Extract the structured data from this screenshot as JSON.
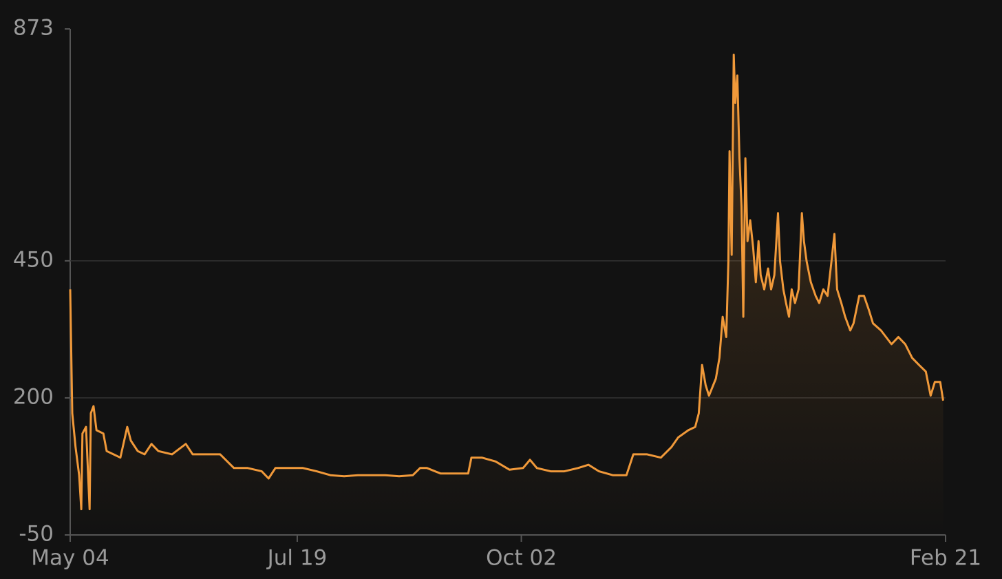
{
  "chart_data": {
    "type": "line",
    "x": [
      0,
      0.7,
      1.8,
      3,
      3.7,
      4.1,
      5.3,
      6.5,
      6.9,
      7.8,
      8.8,
      11.1,
      12.2,
      14.5,
      16.8,
      19.1,
      20.3,
      22.6,
      24.9,
      27.2,
      29.5,
      34.1,
      38.7,
      41,
      45.6,
      50.2,
      54.8,
      59.4,
      64.1,
      66.4,
      68.7,
      73.3,
      77.9,
      82.5,
      87.1,
      91.7,
      96.3,
      100.9,
      105.5,
      110.1,
      114.7,
      117.1,
      119.4,
      124,
      128.6,
      133.2,
      134.3,
      137.8,
      142.4,
      147,
      151.6,
      153.9,
      156.2,
      160.8,
      165.4,
      170,
      173.5,
      177,
      181.6,
      186.2,
      188.5,
      193.1,
      197.7,
      201.2,
      203.5,
      206.9,
      209.2,
      210.4,
      211.5,
      212.7,
      213.8,
      216.1,
      217.3,
      218.4,
      219.6,
      220.3,
      220.7,
      221.4,
      222.1,
      222.6,
      223.3,
      224,
      224.7,
      225.3,
      226,
      226.7,
      227.6,
      228.6,
      229.5,
      230.4,
      231.1,
      232.3,
      233.6,
      234.6,
      235.7,
      236.9,
      237.6,
      238.7,
      239.6,
      240.6,
      241.5,
      242.6,
      243.8,
      244.9,
      245.6,
      246.5,
      247.9,
      249.5,
      250.7,
      252.1,
      253.5,
      254.8,
      255.8,
      256.7,
      258.1,
      259.4,
      261.1,
      262.2,
      264.1,
      265.7,
      267.3,
      268.7,
      271.4,
      274.9,
      277.2,
      279.5,
      281.8,
      284.1,
      286.4,
      288,
      289.4,
      291.2,
      292.2
    ],
    "series": [
      {
        "color": "#f0993a",
        "values": [
          398,
          172,
          110,
          59,
          -3,
          135,
          147,
          -3,
          172,
          185,
          141,
          135,
          103,
          97,
          91,
          147,
          122,
          103,
          97,
          116,
          103,
          97,
          116,
          97,
          97,
          97,
          72,
          72,
          66,
          53,
          72,
          72,
          72,
          66,
          59,
          57,
          59,
          59,
          59,
          57,
          59,
          72,
          72,
          62,
          62,
          62,
          91,
          91,
          84,
          69,
          72,
          87,
          72,
          66,
          66,
          72,
          78,
          66,
          59,
          59,
          97,
          97,
          91,
          110,
          128,
          141,
          147,
          172,
          260,
          223,
          204,
          235,
          273,
          348,
          311,
          449,
          650,
          461,
          826,
          738,
          788,
          637,
          549,
          348,
          637,
          486,
          524,
          474,
          411,
          486,
          424,
          398,
          436,
          398,
          424,
          537,
          449,
          398,
          373,
          348,
          398,
          373,
          398,
          537,
          486,
          449,
          411,
          386,
          373,
          398,
          386,
          449,
          499,
          398,
          373,
          348,
          323,
          336,
          386,
          386,
          361,
          336,
          323,
          298,
          311,
          298,
          273,
          260,
          248,
          204,
          229,
          229,
          195
        ]
      }
    ],
    "xlim": [
      0,
      293
    ],
    "xticks": [
      {
        "value": 0,
        "label": "May 04"
      },
      {
        "value": 76,
        "label": "Jul 19"
      },
      {
        "value": 151,
        "label": "Oct 02"
      },
      {
        "value": 293,
        "label": "Feb 21"
      }
    ],
    "ylim": [
      -50,
      873
    ],
    "yticks": [
      -50,
      200,
      450,
      873
    ],
    "grid": true
  }
}
